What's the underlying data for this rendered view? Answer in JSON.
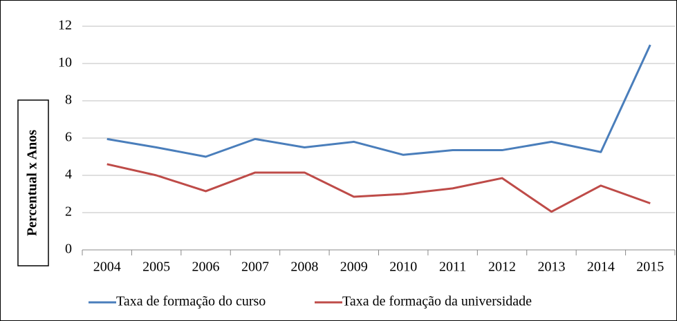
{
  "chart_data": {
    "type": "line",
    "y_label": "Percentual x Anos",
    "categories": [
      "2004",
      "2005",
      "2006",
      "2007",
      "2008",
      "2009",
      "2010",
      "2011",
      "2012",
      "2013",
      "2014",
      "2015"
    ],
    "series": [
      {
        "name": "Taxa de formação do curso",
        "color": "#4a7ebb",
        "values": [
          5.95,
          5.5,
          5.0,
          5.95,
          5.5,
          5.8,
          5.1,
          5.35,
          5.35,
          5.8,
          5.25,
          11.0
        ]
      },
      {
        "name": "Taxa de formação da universidade",
        "color": "#be4b48",
        "values": [
          4.6,
          4.0,
          3.15,
          4.15,
          4.15,
          2.85,
          3.0,
          3.3,
          3.85,
          2.05,
          3.45,
          2.5
        ]
      }
    ],
    "ylim": [
      0,
      12
    ],
    "yticks": [
      0,
      2,
      4,
      6,
      8,
      10,
      12
    ],
    "grid": true,
    "legend": "bottom"
  }
}
